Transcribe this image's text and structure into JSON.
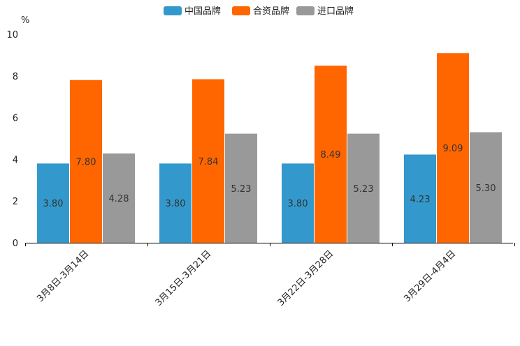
{
  "chart_data": {
    "type": "bar",
    "title": "",
    "xlabel": "",
    "ylabel": "%",
    "ylim": [
      0,
      10
    ],
    "yticks": [
      0,
      2,
      4,
      6,
      8,
      10
    ],
    "grid": false,
    "legend_position": "top-center",
    "categories": [
      "3月8日-3月14日",
      "3月15日-3月21日",
      "3月22日-3月28日",
      "3月29日-4月4日"
    ],
    "series": [
      {
        "name": "中国品牌",
        "color": "#3399cc",
        "values": [
          3.8,
          3.8,
          3.8,
          4.23
        ],
        "labels": [
          "3.80",
          "3.80",
          "3.80",
          "4.23"
        ]
      },
      {
        "name": "合资品牌",
        "color": "#ff6600",
        "values": [
          7.8,
          7.84,
          8.49,
          9.09
        ],
        "labels": [
          "7.80",
          "7.84",
          "8.49",
          "9.09"
        ]
      },
      {
        "name": "进口品牌",
        "color": "#999999",
        "values": [
          4.28,
          5.23,
          5.23,
          5.3
        ],
        "labels": [
          "4.28",
          "5.23",
          "5.23",
          "5.30"
        ]
      }
    ]
  }
}
